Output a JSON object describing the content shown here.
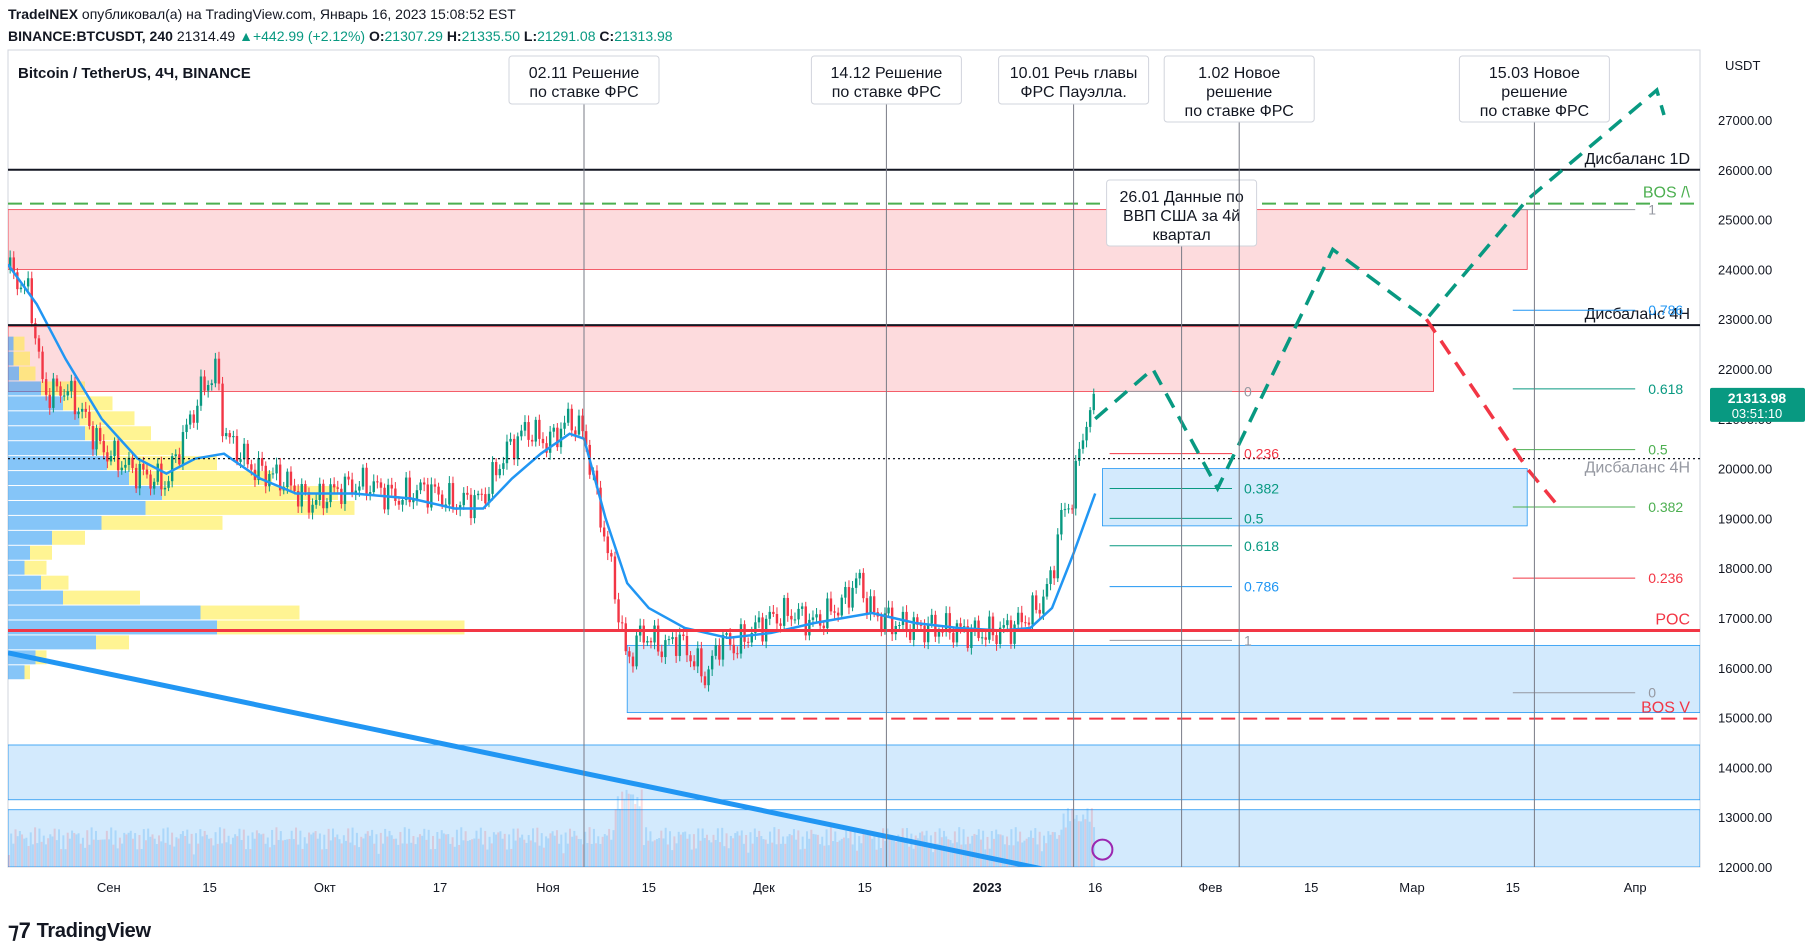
{
  "header": {
    "author": "TradeINEX",
    "published": "опубликовал(а) на TradingView.com, Январь 16, 2023 15:08:52 EST",
    "symbol": "BINANCE:BTCUSDT, 240",
    "last": "21314.49",
    "change": "+442.99 (+2.12%)",
    "o_label": "O:",
    "o": "21307.29",
    "h_label": "H:",
    "h": "21335.50",
    "l_label": "L:",
    "l": "21291.08",
    "c_label": "C:",
    "c": "21313.98"
  },
  "chart_data": {
    "type": "candlestick",
    "title": "Bitcoin / TetherUS, 4Ч, BINANCE",
    "currency": "USDT",
    "ylim": [
      11900,
      28200
    ],
    "y_ticks": [
      12000,
      13000,
      14000,
      15000,
      16000,
      17000,
      18000,
      19000,
      20000,
      21000,
      22000,
      23000,
      24000,
      25000,
      26000,
      27000
    ],
    "y_tick_labels": [
      "12000.00",
      "13000.00",
      "14000.00",
      "15000.00",
      "16000.00",
      "17000.00",
      "18000.00",
      "19000.00",
      "20000.00",
      "21000.00",
      "22000.00",
      "23000.00",
      "24000.00",
      "25000.00",
      "26000.00",
      "27000.00"
    ],
    "x_range_days": [
      0,
      235
    ],
    "x_ticks": [
      {
        "label": "Сен",
        "d": 14
      },
      {
        "label": "15",
        "d": 28
      },
      {
        "label": "Окт",
        "d": 44
      },
      {
        "label": "17",
        "d": 60
      },
      {
        "label": "Ноя",
        "d": 75
      },
      {
        "label": "15",
        "d": 89
      },
      {
        "label": "Дек",
        "d": 105
      },
      {
        "label": "15",
        "d": 119
      },
      {
        "label": "2023",
        "d": 136
      },
      {
        "label": "16",
        "d": 151
      },
      {
        "label": "Фев",
        "d": 167
      },
      {
        "label": "15",
        "d": 181
      },
      {
        "label": "Мар",
        "d": 195
      },
      {
        "label": "15",
        "d": 209
      },
      {
        "label": "Апр",
        "d": 226
      }
    ],
    "price_series_anchors": [
      [
        0,
        24000
      ],
      [
        3,
        23500
      ],
      [
        5,
        21500
      ],
      [
        8,
        21600
      ],
      [
        10,
        21200
      ],
      [
        13,
        20400
      ],
      [
        17,
        20000
      ],
      [
        20,
        19800
      ],
      [
        22,
        19700
      ],
      [
        24,
        20500
      ],
      [
        27,
        21600
      ],
      [
        29,
        22000
      ],
      [
        30,
        20700
      ],
      [
        34,
        20000
      ],
      [
        38,
        19800
      ],
      [
        42,
        19300
      ],
      [
        46,
        19600
      ],
      [
        50,
        19700
      ],
      [
        54,
        19400
      ],
      [
        58,
        19600
      ],
      [
        62,
        19300
      ],
      [
        66,
        19400
      ],
      [
        69,
        20300
      ],
      [
        72,
        20800
      ],
      [
        75,
        20500
      ],
      [
        78,
        21000
      ],
      [
        80,
        20700
      ],
      [
        81,
        20000
      ],
      [
        84,
        17800
      ],
      [
        86,
        16100
      ],
      [
        88,
        16700
      ],
      [
        91,
        16400
      ],
      [
        93,
        16600
      ],
      [
        95,
        16200
      ],
      [
        97,
        15800
      ],
      [
        99,
        16600
      ],
      [
        101,
        16400
      ],
      [
        103,
        16700
      ],
      [
        106,
        17000
      ],
      [
        109,
        17100
      ],
      [
        112,
        16900
      ],
      [
        116,
        17300
      ],
      [
        118,
        17800
      ],
      [
        120,
        17100
      ],
      [
        123,
        16900
      ],
      [
        126,
        16800
      ],
      [
        130,
        16800
      ],
      [
        134,
        16700
      ],
      [
        137,
        16700
      ],
      [
        140,
        16850
      ],
      [
        143,
        17200
      ],
      [
        145,
        17800
      ],
      [
        146,
        18900
      ],
      [
        148,
        19500
      ],
      [
        149,
        20600
      ],
      [
        150,
        21000
      ],
      [
        151,
        21300
      ]
    ],
    "ema_anchors": [
      [
        0,
        24100
      ],
      [
        4,
        23300
      ],
      [
        8,
        22200
      ],
      [
        13,
        21000
      ],
      [
        18,
        20200
      ],
      [
        22,
        19900
      ],
      [
        26,
        20200
      ],
      [
        30,
        20300
      ],
      [
        35,
        19800
      ],
      [
        40,
        19500
      ],
      [
        48,
        19500
      ],
      [
        56,
        19400
      ],
      [
        62,
        19200
      ],
      [
        66,
        19200
      ],
      [
        70,
        19800
      ],
      [
        74,
        20300
      ],
      [
        78,
        20700
      ],
      [
        80,
        20600
      ],
      [
        83,
        19000
      ],
      [
        86,
        17700
      ],
      [
        89,
        17200
      ],
      [
        94,
        16800
      ],
      [
        100,
        16600
      ],
      [
        106,
        16700
      ],
      [
        112,
        16900
      ],
      [
        116,
        17000
      ],
      [
        120,
        17100
      ],
      [
        126,
        16900
      ],
      [
        132,
        16800
      ],
      [
        138,
        16750
      ],
      [
        142,
        16800
      ],
      [
        145,
        17200
      ],
      [
        148,
        18300
      ],
      [
        151,
        19500
      ]
    ],
    "volume_profile": [
      {
        "price": 22500,
        "blue": 1,
        "yellow": 2
      },
      {
        "price": 22200,
        "blue": 1,
        "yellow": 3
      },
      {
        "price": 21900,
        "blue": 2,
        "yellow": 3
      },
      {
        "price": 21600,
        "blue": 6,
        "yellow": 8
      },
      {
        "price": 21300,
        "blue": 10,
        "yellow": 9
      },
      {
        "price": 21000,
        "blue": 13,
        "yellow": 10
      },
      {
        "price": 20700,
        "blue": 14,
        "yellow": 12
      },
      {
        "price": 20400,
        "blue": 16,
        "yellow": 16
      },
      {
        "price": 20100,
        "blue": 18,
        "yellow": 20
      },
      {
        "price": 19800,
        "blue": 22,
        "yellow": 26
      },
      {
        "price": 19500,
        "blue": 28,
        "yellow": 32
      },
      {
        "price": 19200,
        "blue": 25,
        "yellow": 38
      },
      {
        "price": 18900,
        "blue": 17,
        "yellow": 22
      },
      {
        "price": 18600,
        "blue": 8,
        "yellow": 6
      },
      {
        "price": 18300,
        "blue": 4,
        "yellow": 4
      },
      {
        "price": 18000,
        "blue": 3,
        "yellow": 4
      },
      {
        "price": 17700,
        "blue": 6,
        "yellow": 5
      },
      {
        "price": 17400,
        "blue": 10,
        "yellow": 14
      },
      {
        "price": 17100,
        "blue": 35,
        "yellow": 18
      },
      {
        "price": 16800,
        "blue": 38,
        "yellow": 45
      },
      {
        "price": 16500,
        "blue": 16,
        "yellow": 6
      },
      {
        "price": 16200,
        "blue": 5,
        "yellow": 2
      },
      {
        "price": 15900,
        "blue": 3,
        "yellow": 1
      }
    ],
    "volume_profile_max_pct": 100,
    "volume_bars_relative": true,
    "horizontal_lines": [
      {
        "name": "imbalance-1d",
        "price": 26000,
        "label": "Дисбаланс 1D",
        "color": "#131722",
        "style": "solid",
        "d_start": 0,
        "d_end": 235
      },
      {
        "name": "imbalance-4h",
        "price": 22880,
        "label": "Дисбаланс 4H",
        "color": "#131722",
        "style": "solid",
        "d_start": 0,
        "d_end": 235
      },
      {
        "name": "bos-up",
        "price": 25320,
        "label": "BOS /\\",
        "color": "#4caf50",
        "style": "dashed",
        "d_start": 0,
        "d_end": 235
      },
      {
        "name": "poc",
        "price": 16750,
        "label": "POC",
        "color": "#f23645",
        "style": "solid",
        "d_start": 0,
        "d_end": 235
      },
      {
        "name": "bos-down",
        "price": 14980,
        "label": "BOS V",
        "color": "#f23645",
        "style": "dashed",
        "d_start": 86,
        "d_end": 235
      },
      {
        "name": "current-dotted",
        "price": 20200,
        "label": "",
        "color": "#131722",
        "style": "dotted",
        "d_start": 0,
        "d_end": 235
      }
    ],
    "zones": [
      {
        "name": "supply-zone-top",
        "p1": 24000,
        "p2": 25200,
        "d1": 0,
        "d2": 211,
        "color": "red"
      },
      {
        "name": "supply-zone-mid",
        "p1": 21550,
        "p2": 22850,
        "d1": 0,
        "d2": 198,
        "color": "red"
      },
      {
        "name": "demand-zone-4h",
        "p1": 18850,
        "p2": 20000,
        "d1": 152,
        "d2": 211,
        "color": "blue"
      },
      {
        "name": "demand-zone-low",
        "p1": 15100,
        "p2": 16450,
        "d1": 86,
        "d2": 235,
        "color": "blue"
      },
      {
        "name": "demand-zone-14k",
        "p1": 13350,
        "p2": 14450,
        "d1": 0,
        "d2": 235,
        "color": "blue"
      },
      {
        "name": "demand-zone-12k",
        "p1": 12000,
        "p2": 13150,
        "d1": 0,
        "d2": 235,
        "color": "blue"
      }
    ],
    "zone_labels": [
      {
        "text": "Дисбаланс 4H",
        "price": 19920,
        "d": 225,
        "color": "#9598a1"
      }
    ],
    "fib_levels_near": [
      {
        "level": "0",
        "price": 21550,
        "color": "#9598a1"
      },
      {
        "level": "0.236",
        "price": 20300,
        "color": "#f23645"
      },
      {
        "level": "0.382",
        "price": 19600,
        "color": "#089981"
      },
      {
        "level": "0.5",
        "price": 19000,
        "color": "#089981"
      },
      {
        "level": "0.618",
        "price": 18450,
        "color": "#089981"
      },
      {
        "level": "0.786",
        "price": 17630,
        "color": "#2196f3"
      },
      {
        "level": "1",
        "price": 16550,
        "color": "#9598a1"
      }
    ],
    "fib_near_range": [
      153,
      170
    ],
    "fib_levels_far": [
      {
        "level": "1",
        "price": 25200,
        "color": "#9598a1"
      },
      {
        "level": "0.786",
        "price": 23180,
        "color": "#2196f3"
      },
      {
        "level": "0.618",
        "price": 21600,
        "color": "#089981"
      },
      {
        "level": "0.5",
        "price": 20380,
        "color": "#4caf50"
      },
      {
        "level": "0.382",
        "price": 19230,
        "color": "#4caf50"
      },
      {
        "level": "0.236",
        "price": 17800,
        "color": "#f23645"
      },
      {
        "level": "0",
        "price": 15500,
        "color": "#9598a1"
      }
    ],
    "fib_far_range": [
      209,
      226
    ],
    "events": [
      {
        "name": "event-0211",
        "d": 80,
        "text": [
          "02.11 Решение",
          "по ставке ФРС"
        ]
      },
      {
        "name": "event-1412",
        "d": 122,
        "text": [
          "14.12 Решение",
          "по ставке ФРС"
        ]
      },
      {
        "name": "event-1001",
        "d": 148,
        "text": [
          "10.01 Речь главы",
          "ФРС Пауэлла."
        ]
      },
      {
        "name": "event-2601",
        "d": 163,
        "text": [
          "26.01 Данные по",
          "ВВП США за 4й",
          "квартал"
        ]
      },
      {
        "name": "event-0102",
        "d": 171,
        "text": [
          "1.02 Новое",
          "решение",
          "по ставке ФРС"
        ]
      },
      {
        "name": "event-1503",
        "d": 212,
        "text": [
          "15.03 Новое",
          "решение",
          "по ставке ФРС"
        ]
      }
    ],
    "projection_bull": [
      [
        151,
        21000
      ],
      [
        159,
        22000
      ],
      [
        168,
        19600
      ],
      [
        184,
        24400
      ],
      [
        197,
        23000
      ],
      [
        211,
        25400
      ],
      [
        229,
        27600
      ],
      [
        230,
        27100
      ]
    ],
    "projection_bear": [
      [
        197,
        23000
      ],
      [
        211,
        20000
      ],
      [
        215,
        19300
      ]
    ],
    "trendline": {
      "from": [
        0,
        16300
      ],
      "to": [
        144,
        11950
      ],
      "color": "#2196f3"
    },
    "current_price": "21313.98",
    "countdown": "03:51:10"
  },
  "footer": {
    "logo_text": "TradingView"
  },
  "colors": {
    "up": "#089981",
    "down": "#f23645",
    "ema": "#2196f3",
    "supply_fill": "rgba(242,54,69,0.18)",
    "demand_fill": "rgba(33,150,243,0.20)",
    "vp_blue": "rgba(33,150,243,0.55)",
    "vp_yellow": "rgba(255,235,59,0.55)"
  }
}
